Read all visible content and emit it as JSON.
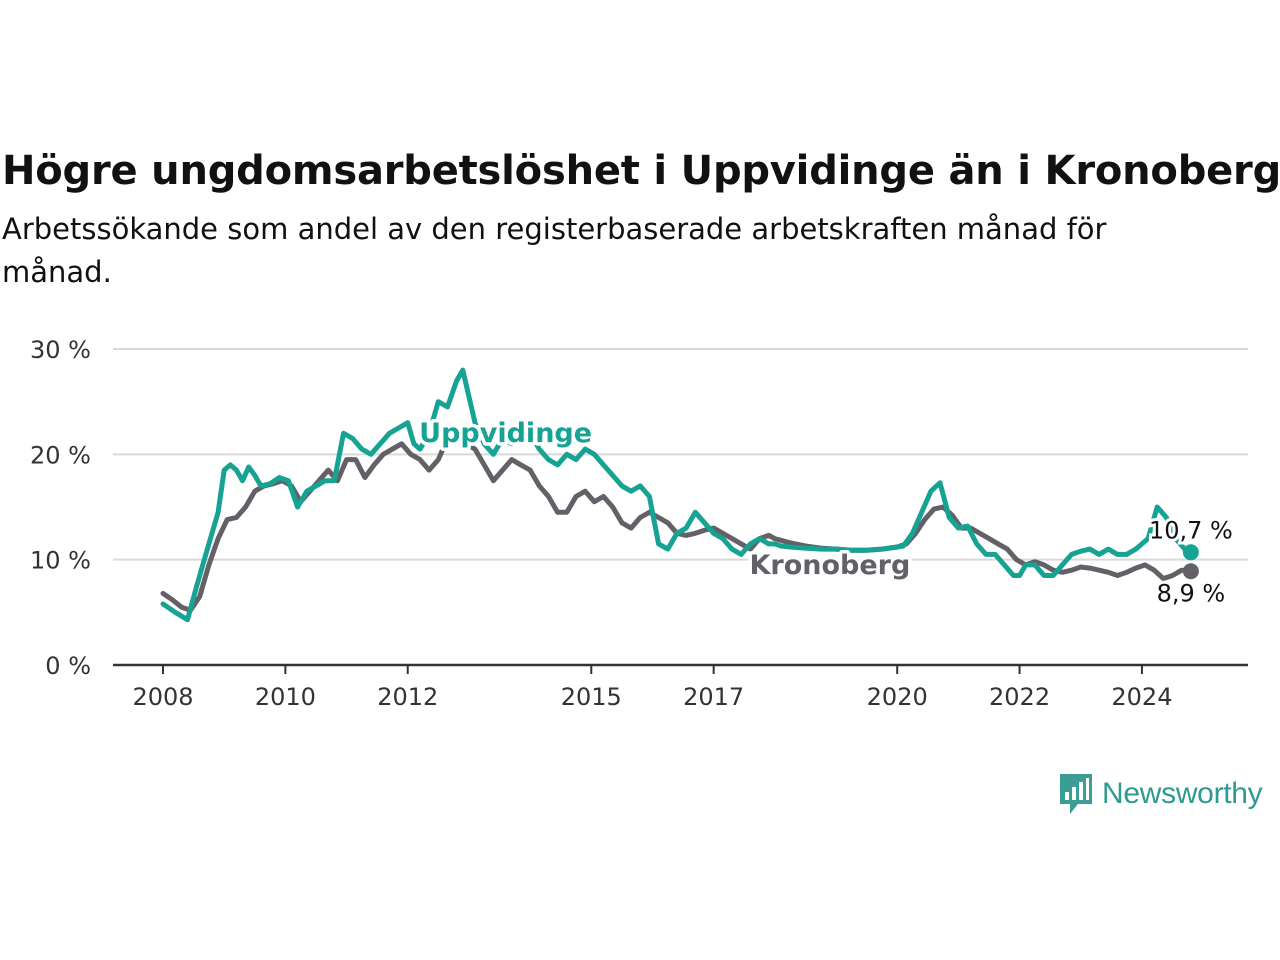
{
  "header": {
    "title": "Högre ungdomsarbetslöshet i Uppvidinge än i Kronoberg",
    "subtitle": "Arbetssökande som andel av den registerbaserade arbetskraften månad för månad."
  },
  "brand": {
    "name": "Newsworthy",
    "icon": "bar-chart-speech-bubble-icon",
    "color": "#3a9e95"
  },
  "chart_data": {
    "type": "line",
    "title": "Högre ungdomsarbetslöshet i Uppvidinge än i Kronoberg",
    "subtitle": "Arbetssökande som andel av den registerbaserade arbetskraften månad för månad.",
    "x_unit": "year",
    "xlim": [
      2008.0,
      2024.9
    ],
    "ylim": [
      0,
      30
    ],
    "y_ticks": [
      0,
      10,
      20,
      30
    ],
    "y_tick_labels": [
      "0 %",
      "10 %",
      "20 %",
      "30 %"
    ],
    "x_ticks": [
      2008,
      2010,
      2012,
      2015,
      2017,
      2020,
      2022,
      2024
    ],
    "x_tick_labels": [
      "2008",
      "2010",
      "2012",
      "2015",
      "2017",
      "2020",
      "2022",
      "2024"
    ],
    "grid": "horizontal",
    "series": [
      {
        "name": "Uppvidinge",
        "color": "#16a394",
        "end_label": "10,7 %",
        "x": [
          2008.0,
          2008.2,
          2008.4,
          2008.55,
          2008.7,
          2008.9,
          2009.0,
          2009.1,
          2009.2,
          2009.3,
          2009.4,
          2009.5,
          2009.6,
          2009.75,
          2009.9,
          2010.05,
          2010.2,
          2010.35,
          2010.5,
          2010.65,
          2010.8,
          2010.95,
          2011.1,
          2011.25,
          2011.4,
          2011.55,
          2011.7,
          2011.85,
          2012.0,
          2012.1,
          2012.2,
          2012.35,
          2012.5,
          2012.65,
          2012.8,
          2012.9,
          2013.0,
          2013.1,
          2013.25,
          2013.4,
          2013.55,
          2013.7,
          2013.85,
          2014.0,
          2014.15,
          2014.3,
          2014.45,
          2014.6,
          2014.75,
          2014.9,
          2015.05,
          2015.2,
          2015.35,
          2015.5,
          2015.65,
          2015.8,
          2015.95,
          2016.1,
          2016.25,
          2016.4,
          2016.55,
          2016.7,
          2016.85,
          2017.0,
          2017.15,
          2017.3,
          2017.45,
          2017.6,
          2017.75,
          2017.9,
          2018.0,
          2018.1,
          2018.25,
          2018.5,
          2018.75,
          2019.0,
          2019.25,
          2019.5,
          2019.75,
          2020.0,
          2020.1,
          2020.25,
          2020.4,
          2020.55,
          2020.7,
          2020.85,
          2021.0,
          2021.15,
          2021.3,
          2021.45,
          2021.6,
          2021.75,
          2021.9,
          2022.0,
          2022.1,
          2022.25,
          2022.4,
          2022.55,
          2022.7,
          2022.85,
          2023.0,
          2023.15,
          2023.3,
          2023.45,
          2023.6,
          2023.75,
          2023.9,
          2024.0,
          2024.1,
          2024.25,
          2024.4,
          2024.55,
          2024.7,
          2024.8
        ],
        "y": [
          5.8,
          5.0,
          4.3,
          7.5,
          10.5,
          14.5,
          18.5,
          19.0,
          18.5,
          17.5,
          18.8,
          18.0,
          17.0,
          17.2,
          17.8,
          17.5,
          15.0,
          16.5,
          17.0,
          17.5,
          17.5,
          22.0,
          21.5,
          20.5,
          20.0,
          21.0,
          22.0,
          22.5,
          23.0,
          21.0,
          20.5,
          22.0,
          25.0,
          24.5,
          27.0,
          28.0,
          25.5,
          23.0,
          21.0,
          20.0,
          21.5,
          21.0,
          22.5,
          22.0,
          20.5,
          19.5,
          19.0,
          20.0,
          19.5,
          20.5,
          20.0,
          19.0,
          18.0,
          17.0,
          16.5,
          17.0,
          16.0,
          11.5,
          11.0,
          12.5,
          13.0,
          14.5,
          13.5,
          12.5,
          12.0,
          11.0,
          10.5,
          11.5,
          12.0,
          11.5,
          11.5,
          11.3,
          11.2,
          11.1,
          11.0,
          11.0,
          10.9,
          10.9,
          11.0,
          11.2,
          11.3,
          12.5,
          14.5,
          16.5,
          17.3,
          14.0,
          13.0,
          13.2,
          11.5,
          10.5,
          10.5,
          9.5,
          8.5,
          8.5,
          9.5,
          9.5,
          8.5,
          8.5,
          9.5,
          10.5,
          10.8,
          11.0,
          10.5,
          11.0,
          10.5,
          10.5,
          11.0,
          11.5,
          12.0,
          15.0,
          14.0,
          12.0,
          11.0,
          10.7
        ]
      },
      {
        "name": "Kronoberg",
        "color": "#636167",
        "end_label": "8,9 %",
        "x": [
          2008.0,
          2008.15,
          2008.3,
          2008.45,
          2008.6,
          2008.75,
          2008.9,
          2009.05,
          2009.2,
          2009.35,
          2009.5,
          2009.65,
          2009.8,
          2009.95,
          2010.1,
          2010.25,
          2010.4,
          2010.55,
          2010.7,
          2010.85,
          2011.0,
          2011.15,
          2011.3,
          2011.45,
          2011.6,
          2011.75,
          2011.9,
          2012.05,
          2012.2,
          2012.35,
          2012.5,
          2012.65,
          2012.8,
          2012.95,
          2013.1,
          2013.25,
          2013.4,
          2013.55,
          2013.7,
          2013.85,
          2014.0,
          2014.15,
          2014.3,
          2014.45,
          2014.6,
          2014.75,
          2014.9,
          2015.05,
          2015.2,
          2015.35,
          2015.5,
          2015.65,
          2015.8,
          2015.95,
          2016.1,
          2016.25,
          2016.4,
          2016.55,
          2016.7,
          2016.85,
          2017.0,
          2017.15,
          2017.3,
          2017.45,
          2017.6,
          2017.75,
          2017.9,
          2018.0,
          2018.25,
          2018.5,
          2018.75,
          2019.0,
          2019.25,
          2019.5,
          2019.75,
          2020.0,
          2020.15,
          2020.3,
          2020.45,
          2020.6,
          2020.75,
          2020.9,
          2021.05,
          2021.2,
          2021.35,
          2021.5,
          2021.65,
          2021.8,
          2021.95,
          2022.1,
          2022.25,
          2022.4,
          2022.55,
          2022.7,
          2022.85,
          2023.0,
          2023.15,
          2023.3,
          2023.45,
          2023.6,
          2023.75,
          2023.9,
          2024.05,
          2024.2,
          2024.35,
          2024.5,
          2024.65,
          2024.8
        ],
        "y": [
          6.8,
          6.2,
          5.5,
          5.2,
          6.5,
          9.5,
          12.0,
          13.8,
          14.0,
          15.0,
          16.5,
          17.0,
          17.2,
          17.5,
          17.0,
          15.5,
          16.5,
          17.5,
          18.5,
          17.5,
          19.5,
          19.5,
          17.8,
          19.0,
          20.0,
          20.5,
          21.0,
          20.0,
          19.5,
          18.5,
          19.5,
          21.5,
          21.5,
          21.0,
          20.5,
          19.0,
          17.5,
          18.5,
          19.5,
          19.0,
          18.5,
          17.0,
          16.0,
          14.5,
          14.5,
          16.0,
          16.5,
          15.5,
          16.0,
          15.0,
          13.5,
          13.0,
          14.0,
          14.5,
          14.0,
          13.5,
          12.5,
          12.3,
          12.5,
          12.8,
          13.0,
          12.5,
          12.0,
          11.5,
          11.0,
          12.0,
          12.3,
          12.0,
          11.6,
          11.3,
          11.1,
          11.0,
          10.9,
          10.9,
          11.0,
          11.2,
          11.5,
          12.5,
          13.8,
          14.8,
          15.0,
          14.2,
          13.0,
          13.0,
          12.5,
          12.0,
          11.5,
          11.0,
          10.0,
          9.5,
          9.8,
          9.5,
          9.0,
          8.8,
          9.0,
          9.3,
          9.2,
          9.0,
          8.8,
          8.5,
          8.8,
          9.2,
          9.5,
          9.0,
          8.2,
          8.5,
          9.0,
          8.9
        ]
      }
    ],
    "annotations": [
      {
        "text": "Uppvidinge",
        "series": "Uppvidinge",
        "x": 2013.6,
        "y": 22.1
      },
      {
        "text": "Kronoberg",
        "series": "Kronoberg",
        "x": 2018.9,
        "y": 9.6
      },
      {
        "text": "10,7 %",
        "series": "Uppvidinge",
        "x": 2024.8,
        "y": 10.7
      },
      {
        "text": "8,9 %",
        "series": "Kronoberg",
        "x": 2024.8,
        "y": 8.9
      }
    ]
  }
}
